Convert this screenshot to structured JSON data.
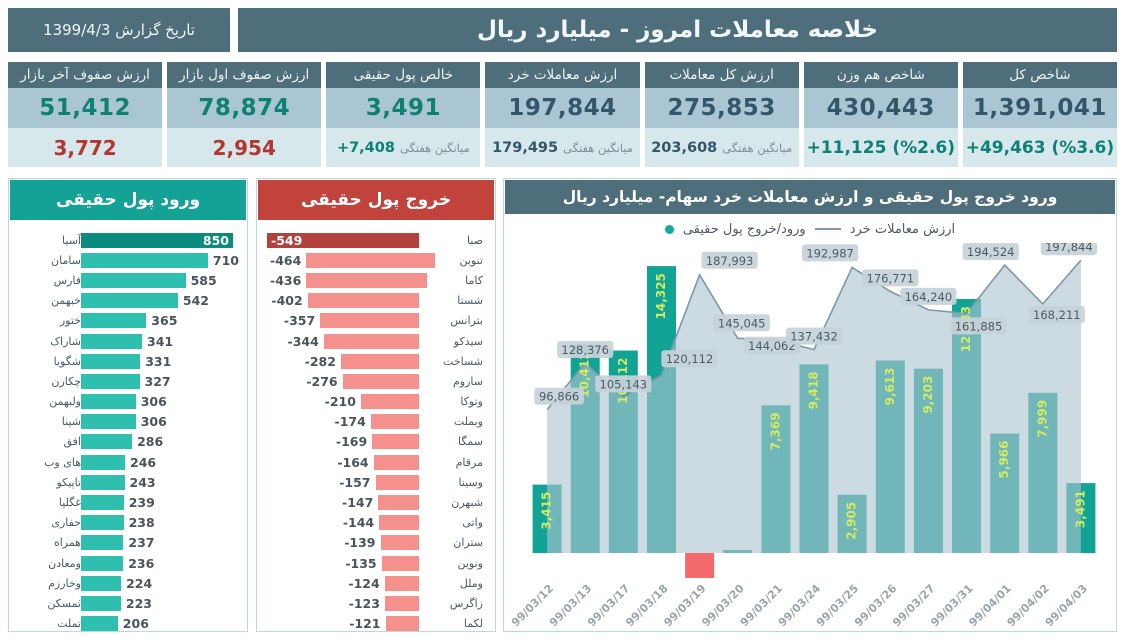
{
  "header": {
    "title": "خلاصه معاملات امروز - میلیارد ریال",
    "report_date_label": "تاریخ گزارش 1399/4/3"
  },
  "kpi_cards": [
    {
      "id": "total-index",
      "title": "شاخص کل",
      "value": "1,391,041",
      "value_color": "dark",
      "sub": "+49,463 (%3.6)",
      "sub_type": "positive"
    },
    {
      "id": "equal-weight-index",
      "title": "شاخص هم وزن",
      "value": "430,443",
      "value_color": "dark",
      "sub": "+11,125 (%2.6)",
      "sub_type": "positive"
    },
    {
      "id": "total-trade-value",
      "title": "ارزش کل معاملات",
      "value": "275,853",
      "value_color": "dark",
      "sub_label": "میانگین هفتگی",
      "sub": "203,608",
      "sub_type": "neutral"
    },
    {
      "id": "retail-trade-value",
      "title": "ارزش معاملات خرد",
      "value": "197,844",
      "value_color": "dark",
      "sub_label": "میانگین هفتگی",
      "sub": "179,495",
      "sub_type": "neutral"
    },
    {
      "id": "net-real-money",
      "title": "خالص پول حقیقی",
      "value": "3,491",
      "value_color": "teal",
      "sub_label": "میانگین هفتگی",
      "sub": "+7,408",
      "sub_type": "positive"
    },
    {
      "id": "first-queue-value",
      "title": "ارزش صفوف اول بازار",
      "value": "78,874",
      "value_color": "teal",
      "sub": "2,954",
      "sub_type": "negative"
    },
    {
      "id": "last-queue-value",
      "title": "ارزش صفوف آخر بازار",
      "value": "51,412",
      "value_color": "teal",
      "sub": "3,772",
      "sub_type": "negative"
    }
  ],
  "inflow_panel": {
    "title": "ورود پول حقیقی"
  },
  "outflow_panel": {
    "title": "خروج پول حقیقی"
  },
  "combo_panel": {
    "title": "ورود خروج پول حقیقی و ارزش معاملات خرد سهام- میلیارد ریال",
    "legend": [
      {
        "label": "ارزش معاملات خرد",
        "marker": "line"
      },
      {
        "label": "ورود/خروج پول حقیقی",
        "marker": "dot"
      }
    ]
  },
  "colors": {
    "slate": "#4e6e7c",
    "teal_header": "#15a296",
    "red_header": "#c2423c",
    "inflow_bar": "#2fbfae",
    "inflow_bar_top": "#0b8b7d",
    "outflow_bar": "#f5918c",
    "outflow_bar_top": "#b2423e",
    "chart_bar": "#11a396",
    "chart_bar_negative": "#f4696c",
    "chart_bar_label": "#d4eb5f",
    "area_fill": "#adc4cf",
    "area_line": "#7d98a6",
    "badge_fill": "#c6d2d9",
    "positive_text": "#0e8074",
    "negative_text": "#b5352f",
    "value_text": "#33566b"
  },
  "chart_data": [
    {
      "type": "bar",
      "orientation": "horizontal",
      "title": "ورود پول حقیقی",
      "categories": [
        "آسیا",
        "سامان",
        "فارس",
        "خبهمن",
        "ختور",
        "شاراک",
        "شگویا",
        "چکارن",
        "ولبهمن",
        "شپنا",
        "افق",
        "های وب",
        "تاپیکو",
        "غگلپا",
        "حفاری",
        "همراه",
        "ومعادن",
        "وخارزم",
        "ثمسکن",
        "تملت"
      ],
      "values": [
        850,
        710,
        585,
        542,
        365,
        341,
        331,
        327,
        306,
        306,
        286,
        246,
        243,
        239,
        238,
        237,
        236,
        224,
        223,
        206
      ]
    },
    {
      "type": "bar",
      "orientation": "horizontal",
      "title": "خروج پول حقیقی",
      "categories": [
        "صبا",
        "تنوین",
        "کاما",
        "شستا",
        "بترانس",
        "سیدکو",
        "شساخت",
        "ساروم",
        "وتوکا",
        "وبملت",
        "سمگا",
        "مرقام",
        "وسینا",
        "شبهرن",
        "واتی",
        "ستران",
        "ونوین",
        "وملل",
        "زاگرس",
        "لکما"
      ],
      "values": [
        -549,
        -464,
        -436,
        -402,
        -357,
        -344,
        -282,
        -276,
        -210,
        -174,
        -169,
        -164,
        -157,
        -147,
        -144,
        -139,
        -135,
        -124,
        -123,
        -121
      ]
    },
    {
      "type": "combo",
      "title": "ورود خروج پول حقیقی و ارزش معاملات خرد سهام- میلیارد ریال",
      "categories": [
        "99/03/12",
        "99/03/13",
        "99/03/17",
        "99/03/18",
        "99/03/19",
        "99/03/20",
        "99/03/21",
        "99/03/24",
        "99/03/25",
        "99/03/26",
        "99/03/27",
        "99/03/31",
        "99/04/01",
        "99/04/02",
        "99/04/03"
      ],
      "series": [
        {
          "name": "ورود/خروج پول حقیقی",
          "type": "bar",
          "values": [
            3415,
            10412,
            10112,
            14325,
            -1250,
            150,
            7369,
            9418,
            2905,
            9613,
            9203,
            12683,
            5966,
            7999,
            3491
          ],
          "value_labels": [
            "3,415",
            "10,412",
            "10,112",
            "14,325",
            "",
            "",
            "7,369",
            "9,418",
            "2,905",
            "9,613",
            "9,203",
            "12,683",
            "5,966",
            "7,999",
            "3,491"
          ],
          "note": "values at 99/03/19 and 99/03/20 are unlabeled in source; bar heights estimated"
        },
        {
          "name": "ارزش معاملات خرد",
          "type": "area",
          "values": [
            96866,
            128376,
            105143,
            120112,
            187993,
            145045,
            144062,
            137432,
            192987,
            176771,
            164240,
            161885,
            194524,
            168211,
            197844
          ]
        }
      ],
      "legend_position": "top"
    }
  ]
}
